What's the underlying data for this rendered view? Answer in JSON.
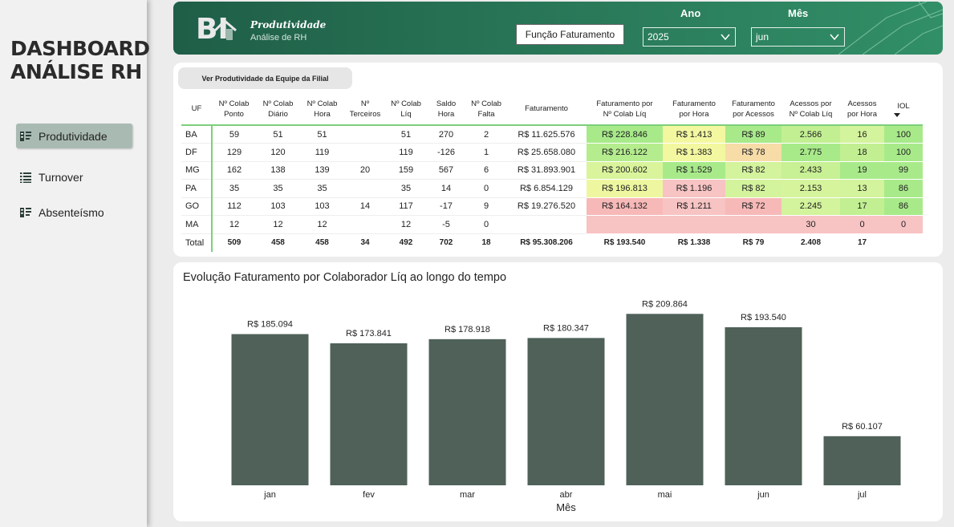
{
  "sidebar": {
    "title_line1": "DASHBOARD",
    "title_line2": "ANÁLISE RH",
    "items": [
      {
        "label": "Produtividade",
        "icon": "report-icon",
        "active": true
      },
      {
        "label": "Turnover",
        "icon": "list-icon",
        "active": false
      },
      {
        "label": "Absenteísmo",
        "icon": "report-icon",
        "active": false
      }
    ]
  },
  "header": {
    "logo_text": "BI",
    "title": "Produtividade",
    "subtitle": "Análise de RH",
    "function_button": "Função Faturamento",
    "year_label": "Ano",
    "year_value": "2025",
    "month_label": "Mês",
    "month_value": "jun"
  },
  "table": {
    "team_button": "Ver Produtividade da Equipe da Filial",
    "columns": [
      [
        "UF"
      ],
      [
        "Nº Colab",
        "Ponto"
      ],
      [
        "Nº Colab",
        "Diário"
      ],
      [
        "Nº Colab",
        "Hora"
      ],
      [
        "Nº",
        "Terceiros"
      ],
      [
        "Nº Colab",
        "Líq"
      ],
      [
        "Saldo",
        "Hora"
      ],
      [
        "Nº Colab",
        "Falta"
      ],
      [
        "Faturamento"
      ],
      [
        "Faturamento por",
        "Nº Colab Líq"
      ],
      [
        "Faturamento",
        "por Hora"
      ],
      [
        "Faturamento",
        "por Acessos"
      ],
      [
        "Acessos por",
        "Nº Colab Líq"
      ],
      [
        "Acessos",
        "por Hora"
      ],
      [
        "IOL"
      ]
    ],
    "rows": [
      [
        "BA",
        "59",
        "51",
        "51",
        "",
        "51",
        "270",
        "2",
        "R$ 11.625.576",
        "R$ 228.846",
        "R$ 1.413",
        "R$ 89",
        "2.566",
        "16",
        "100"
      ],
      [
        "DF",
        "129",
        "120",
        "119",
        "",
        "119",
        "-126",
        "1",
        "R$ 25.658.080",
        "R$ 216.122",
        "R$ 1.383",
        "R$ 78",
        "2.775",
        "18",
        "100"
      ],
      [
        "MG",
        "162",
        "138",
        "139",
        "20",
        "159",
        "567",
        "6",
        "R$ 31.893.901",
        "R$ 200.602",
        "R$ 1.529",
        "R$ 82",
        "2.433",
        "19",
        "99"
      ],
      [
        "PA",
        "35",
        "35",
        "35",
        "",
        "35",
        "14",
        "0",
        "R$ 6.854.129",
        "R$ 196.813",
        "R$ 1.196",
        "R$ 82",
        "2.153",
        "13",
        "86"
      ],
      [
        "GO",
        "112",
        "103",
        "103",
        "14",
        "117",
        "-17",
        "9",
        "R$ 19.276.520",
        "R$ 164.132",
        "R$ 1.211",
        "R$ 72",
        "2.245",
        "17",
        "86"
      ],
      [
        "MA",
        "12",
        "12",
        "12",
        "",
        "12",
        "-5",
        "0",
        "",
        "",
        "",
        "",
        "30",
        "0",
        "0"
      ]
    ],
    "total": [
      "Total",
      "509",
      "458",
      "458",
      "34",
      "492",
      "702",
      "18",
      "R$ 95.308.206",
      "R$ 193.540",
      "R$ 1.338",
      "R$ 79",
      "2.408",
      "17",
      ""
    ],
    "cell_colors": [
      [
        "#a8ea8a",
        "#f3f7a0",
        "#a8ea8a",
        "#c2ef92",
        "#d3f39c",
        "#a8ea8a",
        "#6ea8f0"
      ],
      [
        "#b4ec8e",
        "#f3f7a0",
        "#f7dca8",
        "#a8ea8a",
        "#c2ef92",
        "#a8ea8a",
        "#6ea8f0"
      ],
      [
        "#d9f49b",
        "#a8ea8a",
        "#d3f39c",
        "#c8f094",
        "#a8ea8a",
        "#a8ea8a",
        "#74acf0"
      ],
      [
        "#eef7a0",
        "#f7c3c3",
        "#d3f39c",
        "#d6f49c",
        "#d3f39c",
        "#a8ea8a",
        "#83b5f0"
      ],
      [
        "#f7b8b8",
        "#f7c3c3",
        "#f7b8b8",
        "#d3f39c",
        "#c2ef92",
        "#a8ea8a",
        "#83b5f0"
      ],
      [
        "#f7c3c3",
        "#f7c3c3",
        "#f7c3c3",
        "#f7c3c3",
        "#f7c3c3",
        "#f7c3c3",
        "#dde9f8"
      ]
    ]
  },
  "chart_data": {
    "type": "bar",
    "title": "Evolução Faturamento por Colaborador Líq ao longo do tempo",
    "xlabel": "Mês",
    "ylabel": "",
    "categories": [
      "jan",
      "fev",
      "mar",
      "abr",
      "mai",
      "jun",
      "jul"
    ],
    "values": [
      185094,
      173841,
      178918,
      180347,
      209864,
      193540,
      60107
    ],
    "data_labels": [
      "R$ 185.094",
      "R$ 173.841",
      "R$ 178.918",
      "R$ 180.347",
      "R$ 209.864",
      "R$ 193.540",
      "R$ 60.107"
    ],
    "ylim": [
      0,
      219000
    ],
    "bar_color": "#4f6158",
    "grid": false,
    "legend": "none"
  }
}
